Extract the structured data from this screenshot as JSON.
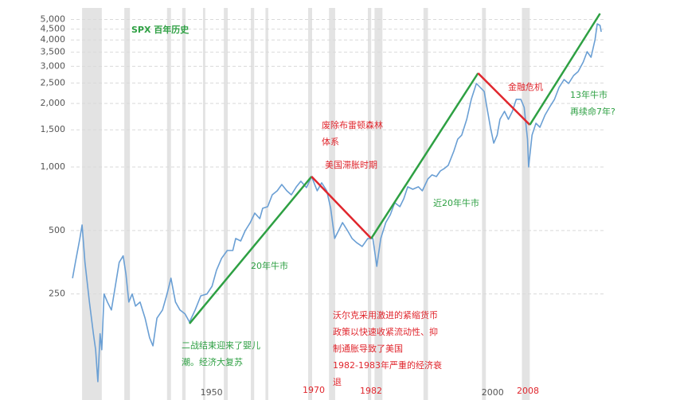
{
  "chart_data": {
    "type": "line",
    "log_y": true,
    "grid": true,
    "color": "#6a9fd4",
    "ylim": [
      88,
      5670
    ],
    "yticks": [
      250,
      500,
      {
        "value": 1000,
        "label": "1,000"
      },
      {
        "value": 1500,
        "label": "1,500"
      },
      {
        "value": 2000,
        "label": "2,000"
      },
      {
        "value": 2500,
        "label": "2,500"
      },
      {
        "value": 3000,
        "label": "3,000"
      },
      {
        "value": 3500,
        "label": "3,500"
      },
      {
        "value": 4000,
        "label": "4,000"
      },
      {
        "value": 4500,
        "label": "4,500"
      },
      {
        "value": 5000,
        "label": "5,000"
      }
    ],
    "xlim": [
      1925,
      2020
    ],
    "xticks": [
      1950,
      2000
    ],
    "x": [
      1925.3,
      1925.8,
      1926.6,
      1927.0,
      1927.5,
      1928.3,
      1929.0,
      1929.4,
      1929.8,
      1930.2,
      1930.5,
      1930.9,
      1931.5,
      1932.2,
      1932.9,
      1933.6,
      1934.3,
      1934.8,
      1935.3,
      1935.9,
      1936.5,
      1937.3,
      1938.2,
      1939.0,
      1939.6,
      1940.3,
      1941.3,
      1942.1,
      1942.8,
      1943.6,
      1944.4,
      1945.3,
      1946.1,
      1947.1,
      1948.1,
      1949.2,
      1950.1,
      1950.9,
      1951.8,
      1952.8,
      1953.8,
      1954.3,
      1955.2,
      1956.0,
      1956.9,
      1957.7,
      1958.6,
      1959.1,
      1960.0,
      1960.8,
      1961.7,
      1962.5,
      1963.4,
      1964.2,
      1965.1,
      1965.9,
      1966.9,
      1967.8,
      1968.8,
      1969.6,
      1970.5,
      1971.2,
      1971.9,
      1972.6,
      1973.3,
      1974.2,
      1975.0,
      1975.8,
      1976.8,
      1977.8,
      1978.7,
      1979.4,
      1980.1,
      1981.0,
      1981.8,
      1982.6,
      1983.5,
      1984.2,
      1984.9,
      1985.8,
      1986.8,
      1987.5,
      1988.5,
      1989.2,
      1990.0,
      1990.7,
      1991.4,
      1992.1,
      1993.1,
      1993.8,
      1994.5,
      1995.4,
      1996.2,
      1997.1,
      1997.8,
      1998.5,
      1999.1,
      1999.6,
      2000.2,
      2000.8,
      2001.3,
      2002.1,
      2002.8,
      2003.5,
      2004.2,
      2005.0,
      2005.6,
      2006.2,
      2006.4,
      2007.0,
      2007.7,
      2008.4,
      2009.3,
      2010.1,
      2011.0,
      2011.8,
      2012.7,
      2013.5,
      2014.4,
      2015.2,
      2016.1,
      2016.8,
      2017.5,
      2018.2,
      2018.6,
      2019.1,
      2019.3
    ],
    "values": [
      297,
      353,
      458,
      531,
      353,
      229,
      162,
      136,
      96,
      162,
      136,
      250,
      229,
      210,
      272,
      353,
      379,
      310,
      229,
      250,
      219,
      229,
      192,
      155,
      142,
      192,
      210,
      250,
      297,
      229,
      210,
      201,
      184,
      210,
      245,
      250,
      272,
      324,
      369,
      402,
      402,
      458,
      446,
      499,
      545,
      604,
      569,
      637,
      648,
      738,
      771,
      826,
      771,
      738,
      805,
      856,
      798,
      901,
      771,
      841,
      771,
      637,
      458,
      499,
      545,
      499,
      458,
      438,
      420,
      458,
      458,
      338,
      458,
      545,
      594,
      677,
      648,
      707,
      805,
      784,
      805,
      771,
      878,
      917,
      901,
      957,
      983,
      1017,
      1189,
      1355,
      1415,
      1683,
      2091,
      2487,
      2381,
      2280,
      1835,
      1543,
      1297,
      1415,
      1683,
      1835,
      1683,
      1835,
      2091,
      2091,
      1917,
      1355,
      1000,
      1415,
      1611,
      1543,
      1758,
      1917,
      2091,
      2381,
      2597,
      2487,
      2712,
      2832,
      3143,
      3518,
      3311,
      4008,
      4766,
      4686,
      4370
    ],
    "recession_color": "#e3e3e3",
    "recessions": [
      [
        1927.0,
        1930.5
      ],
      [
        1934.5,
        1935.5
      ],
      [
        1942.1,
        1942.8
      ],
      [
        1944.8,
        1945.4
      ],
      [
        1948.5,
        1948.9
      ],
      [
        1952.2,
        1952.9
      ],
      [
        1957.0,
        1957.6
      ],
      [
        1959.6,
        1960.1
      ],
      [
        1967.2,
        1967.9
      ],
      [
        1970.9,
        1972.0
      ],
      [
        1977.8,
        1978.4
      ],
      [
        1979.0,
        1980.4
      ],
      [
        1987.7,
        1988.5
      ],
      [
        1998.1,
        1998.8
      ],
      [
        2005.2,
        2006.6
      ]
    ],
    "trends": [
      {
        "color": "#2ea043",
        "x": [
          1946.1,
          1967.8
        ],
        "values": [
          181,
          901
        ]
      },
      {
        "color": "#e0262d",
        "x": [
          1967.8,
          1978.4
        ],
        "values": [
          901,
          458
        ]
      },
      {
        "color": "#2ea043",
        "x": [
          1978.4,
          1997.4
        ],
        "values": [
          458,
          2784
        ]
      },
      {
        "color": "#e0262d",
        "x": [
          1997.4,
          2006.6
        ],
        "values": [
          2784,
          1583
        ]
      },
      {
        "color": "#2ea043",
        "x": [
          2006.6,
          2019.1
        ],
        "values": [
          1583,
          5337
        ]
      }
    ],
    "annotations": [
      {
        "color": "#2ea043",
        "lines": [
          "SPX 百年历史"
        ]
      },
      {
        "color": "#2ea043",
        "lines": [
          "二战结束迎来了婴儿",
          "潮。经济大复苏"
        ]
      },
      {
        "color": "#2ea043",
        "lines": [
          "20年牛市"
        ]
      },
      {
        "color": "#e0262d",
        "lines": [
          "废除布雷顿森林",
          "体系"
        ]
      },
      {
        "color": "#e0262d",
        "lines": [
          "美国滞胀时期"
        ]
      },
      {
        "color": "#e0262d",
        "lines": [
          "沃尔克采用激进的紧缩货币",
          "政策以快速收紧流动性、抑",
          "制通胀导致了美国",
          "1982-1983年严重的经济衰",
          "退"
        ]
      },
      {
        "color": "#2ea043",
        "lines": [
          "近20年牛市"
        ]
      },
      {
        "color": "#e0262d",
        "lines": [
          "金融危机"
        ]
      },
      {
        "color": "#2ea043",
        "lines": [
          "13年牛市",
          "再续命7年?"
        ]
      },
      {
        "color": "#e0262d",
        "lines": [
          "1970"
        ]
      },
      {
        "color": "#e0262d",
        "lines": [
          "1982"
        ]
      },
      {
        "color": "#e0262d",
        "lines": [
          "2008"
        ]
      }
    ]
  }
}
